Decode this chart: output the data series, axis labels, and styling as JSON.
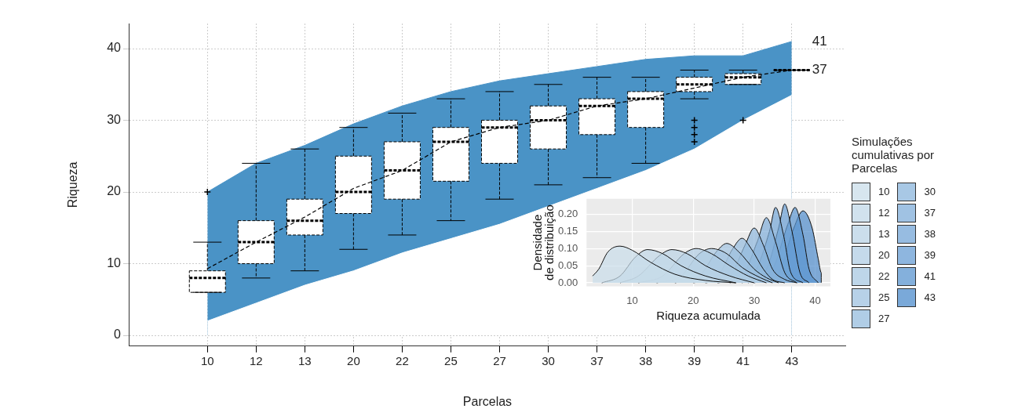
{
  "chart_data": [
    {
      "type": "box",
      "colors": [
        "#ffffff",
        "#ffffff",
        "#ffffff",
        "#ffffff",
        "#ffffff",
        "#ffffff",
        "#ffffff",
        "#ffffff",
        "#ffffff",
        "#ffffff",
        "#ffffff",
        "#ffffff",
        "#000000"
      ],
      "xlabel": "Parcelas",
      "ylabel": "Riqueza",
      "categories": [
        "10",
        "12",
        "13",
        "20",
        "22",
        "25",
        "27",
        "30",
        "37",
        "38",
        "39",
        "41",
        "43"
      ],
      "boxes": [
        {
          "low": 6,
          "q1": 6,
          "median": 8,
          "q3": 9,
          "high": 13,
          "outliers": [
            20
          ]
        },
        {
          "low": 8,
          "q1": 10,
          "median": 13,
          "q3": 16,
          "high": 24
        },
        {
          "low": 9,
          "q1": 14,
          "median": 16,
          "q3": 19,
          "high": 26
        },
        {
          "low": 12,
          "q1": 17,
          "median": 20,
          "q3": 25,
          "high": 29
        },
        {
          "low": 14,
          "q1": 19,
          "median": 23,
          "q3": 27,
          "high": 31
        },
        {
          "low": 16,
          "q1": 21.5,
          "median": 27,
          "q3": 29,
          "high": 33
        },
        {
          "low": 19,
          "q1": 24,
          "median": 29,
          "q3": 30,
          "high": 34
        },
        {
          "low": 21,
          "q1": 26,
          "median": 30,
          "q3": 32,
          "high": 35
        },
        {
          "low": 22,
          "q1": 28,
          "median": 32,
          "q3": 33,
          "high": 36
        },
        {
          "low": 24,
          "q1": 29,
          "median": 33,
          "q3": 34,
          "high": 36
        },
        {
          "low": 33,
          "q1": 34,
          "median": 35,
          "q3": 36,
          "high": 37,
          "outliers": [
            30,
            29,
            28,
            27
          ]
        },
        {
          "low": 35,
          "q1": 35,
          "median": 36,
          "q3": 36.5,
          "high": 37,
          "outliers": [
            30
          ]
        },
        {
          "low": 37,
          "q1": 37,
          "median": 37,
          "q3": 37,
          "high": 37
        }
      ],
      "series": [
        {
          "type": "area",
          "color": "#4a93c6",
          "values": [
            20,
            24,
            26.5,
            29.5,
            32,
            34,
            35.5,
            36.5,
            37.5,
            38.5,
            39,
            39,
            41
          ]
        },
        {
          "type": "area",
          "color": "#ffffff",
          "values": [
            2,
            4.5,
            7,
            9,
            11.5,
            13.5,
            15.5,
            18,
            20.5,
            23,
            26,
            30,
            33.5
          ]
        },
        {
          "type": "line",
          "color": "#000000",
          "line_style": "dashed",
          "values": [
            9.3,
            13,
            16.5,
            20.5,
            23,
            27,
            29,
            30,
            32,
            33,
            34.5,
            36,
            37
          ]
        }
      ],
      "ylim": [
        -1.5,
        43.5
      ],
      "yticks": [
        0,
        10,
        20,
        30,
        40
      ],
      "grid": true,
      "annotations": [
        {
          "text": "41",
          "x": "43",
          "y": 41
        },
        {
          "text": "37",
          "x": "43",
          "y": 37
        }
      ]
    },
    {
      "type": "area",
      "xlabel": "Riqueza acumulada",
      "ylabel": "Densidade\nde distribuição",
      "legend_title": "Simulações cumulativas por Parcelas",
      "legend": "right",
      "grid": true,
      "xlim": [
        2.5,
        42.5
      ],
      "xticks": [
        10,
        20,
        30,
        40
      ],
      "ylim": [
        -0.01,
        0.245
      ],
      "yticks": [
        {
          "value": 0,
          "label": "0.00"
        },
        {
          "value": 0.05,
          "label": "0.05"
        },
        {
          "value": 0.1,
          "label": "0.10"
        },
        {
          "value": 0.15,
          "label": "0.15"
        },
        {
          "value": 0.2,
          "label": "0.20"
        }
      ],
      "series": [
        {
          "name": "10",
          "color": "#c9dde9",
          "x": [
            3.5,
            4.5,
            6,
            8,
            10,
            13,
            17,
            22,
            27
          ],
          "values": [
            0.02,
            0.04,
            0.09,
            0.107,
            0.095,
            0.06,
            0.025,
            0.007,
            0
          ]
        },
        {
          "name": "12",
          "color": "#c2d8e8",
          "x": [
            5,
            8,
            10.5,
            12.5,
            15,
            18,
            22,
            27
          ],
          "values": [
            0,
            0.02,
            0.075,
            0.097,
            0.085,
            0.05,
            0.02,
            0
          ]
        },
        {
          "name": "13",
          "color": "#bad3e6",
          "x": [
            8,
            11,
            14.5,
            16.5,
            19,
            22,
            26,
            30
          ],
          "values": [
            0,
            0.02,
            0.08,
            0.097,
            0.085,
            0.05,
            0.02,
            0
          ]
        },
        {
          "name": "20",
          "color": "#b1cde4",
          "x": [
            11,
            15,
            18.5,
            20.5,
            23,
            26,
            29,
            32
          ],
          "values": [
            0,
            0.02,
            0.085,
            0.1,
            0.085,
            0.05,
            0.02,
            0
          ]
        },
        {
          "name": "22",
          "color": "#a8c8e2",
          "x": [
            14,
            18,
            21,
            23,
            25.5,
            28,
            31,
            33
          ],
          "values": [
            0,
            0.02,
            0.085,
            0.1,
            0.085,
            0.045,
            0.015,
            0
          ]
        },
        {
          "name": "25",
          "color": "#9fc2e0",
          "x": [
            17,
            21,
            24,
            25.5,
            27.5,
            30,
            32,
            34
          ],
          "values": [
            0,
            0.02,
            0.095,
            0.115,
            0.09,
            0.04,
            0.015,
            0
          ]
        },
        {
          "name": "27",
          "color": "#95bcde",
          "x": [
            20,
            24,
            26.5,
            28,
            29.5,
            31.5,
            33,
            35
          ],
          "values": [
            0,
            0.02,
            0.1,
            0.13,
            0.1,
            0.04,
            0.01,
            0
          ]
        },
        {
          "name": "30",
          "color": "#8bb5dc",
          "x": [
            22,
            26,
            28.5,
            30,
            31.5,
            33,
            35,
            37
          ],
          "values": [
            0,
            0.02,
            0.11,
            0.16,
            0.11,
            0.04,
            0.01,
            0
          ]
        },
        {
          "name": "37",
          "color": "#80aeda",
          "x": [
            24,
            28,
            30.5,
            32,
            33.5,
            35,
            37
          ],
          "values": [
            0,
            0.02,
            0.12,
            0.19,
            0.12,
            0.03,
            0
          ]
        },
        {
          "name": "38",
          "color": "#74a6d7",
          "x": [
            26,
            30,
            32.5,
            33.5,
            34.8,
            36,
            38
          ],
          "values": [
            0,
            0.03,
            0.15,
            0.22,
            0.14,
            0.03,
            0
          ]
        },
        {
          "name": "39",
          "color": "#689ed4",
          "x": [
            28,
            32,
            34,
            35,
            36.2,
            37.5,
            39
          ],
          "values": [
            0,
            0.04,
            0.16,
            0.23,
            0.15,
            0.03,
            0
          ]
        },
        {
          "name": "41",
          "color": "#5b95d0",
          "x": [
            29,
            33,
            35.5,
            36.7,
            38,
            39,
            40.5
          ],
          "values": [
            0,
            0.04,
            0.17,
            0.22,
            0.14,
            0.04,
            0
          ]
        },
        {
          "name": "43",
          "color": "#4e8ccc",
          "x": [
            30,
            34,
            36.5,
            38,
            39.5,
            40.5,
            41,
            41
          ],
          "values": [
            0,
            0.03,
            0.16,
            0.21,
            0.16,
            0.07,
            0.03,
            0
          ]
        }
      ]
    }
  ]
}
